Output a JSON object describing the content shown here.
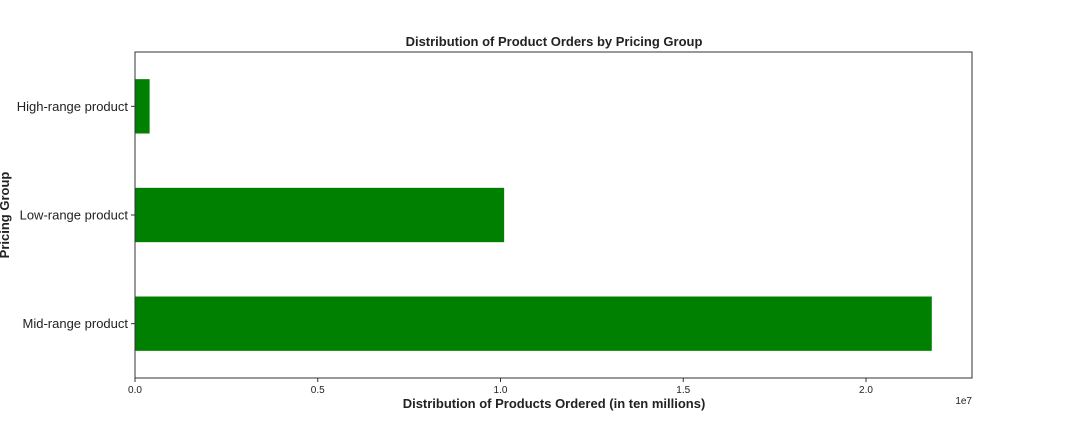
{
  "chart_data": {
    "type": "bar",
    "orientation": "horizontal",
    "title": "Distribution of Product Orders by Pricing Group",
    "xlabel": "Distribution of Products Ordered (in ten millions)",
    "ylabel": "Pricing Group",
    "x_scale_note": "1e7",
    "categories": [
      "High-range product",
      "Low-range product",
      "Mid-range product"
    ],
    "values": [
      400000,
      10100000,
      21800000
    ],
    "xlim": [
      0,
      22900000
    ],
    "xticks": [
      0,
      5000000,
      10000000,
      15000000,
      20000000
    ],
    "xtick_labels": [
      "0.0",
      "0.5",
      "1.0",
      "1.5",
      "2.0"
    ],
    "bar_color": "#008000",
    "grid": false,
    "legend": "none"
  }
}
